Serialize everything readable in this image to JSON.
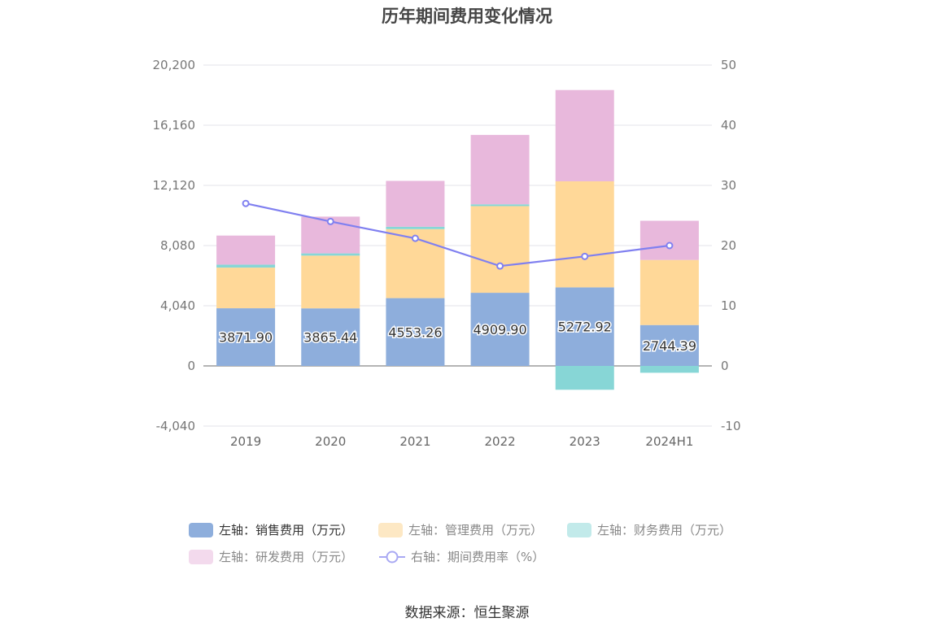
{
  "title": "历年期间费用变化情况",
  "source": "数据来源：恒生聚源",
  "chart_data": {
    "type": "bar",
    "stacked": true,
    "categories": [
      "2019",
      "2020",
      "2021",
      "2022",
      "2023",
      "2024H1"
    ],
    "left_axis": {
      "ticks": [
        "20,200",
        "16,160",
        "12,120",
        "8,080",
        "4,040",
        "0",
        "-4,040"
      ],
      "ylim": [
        -4040,
        20200
      ]
    },
    "right_axis": {
      "ticks": [
        "50",
        "40",
        "30",
        "20",
        "10",
        "0",
        "-10"
      ],
      "ylim": [
        -10,
        50
      ]
    },
    "series": [
      {
        "name": "左轴：销售费用（万元）",
        "axis": "left",
        "color": "#8eaedc",
        "values": [
          3871.9,
          3865.44,
          4553.26,
          4909.9,
          5272.92,
          2744.39
        ],
        "labels": [
          "3871.90",
          "3865.44",
          "4553.26",
          "4909.90",
          "5272.92",
          "2744.39"
        ]
      },
      {
        "name": "左轴：管理费用（万元）",
        "axis": "left",
        "color": "#ffd898",
        "values": [
          2730,
          3540,
          4630,
          5820,
          7120,
          4370
        ]
      },
      {
        "name": "左轴：财务费用（万元）",
        "axis": "left",
        "color": "#87d6d6",
        "values": [
          200,
          150,
          160,
          120,
          -1600,
          -460
        ]
      },
      {
        "name": "左轴：研发费用（万元）",
        "axis": "left",
        "color": "#e8b8dc",
        "values": [
          1950,
          2470,
          3080,
          4660,
          6130,
          2630
        ]
      },
      {
        "name": "右轴：期间费用率（%）",
        "axis": "right",
        "type": "line",
        "color": "#8080f0",
        "values": [
          27.0,
          24.0,
          21.2,
          16.6,
          18.2,
          20.0
        ]
      }
    ]
  },
  "legend": [
    {
      "label": "左轴：销售费用（万元）",
      "color": "#8eaedc",
      "style": "box"
    },
    {
      "label": "左轴：管理费用（万元）",
      "color": "#fde8c4",
      "style": "box"
    },
    {
      "label": "左轴：财务费用（万元）",
      "color": "#c2eaea",
      "style": "box"
    },
    {
      "label": "左轴：研发费用（万元）",
      "color": "#f3daed",
      "style": "box"
    },
    {
      "label": "右轴：期间费用率（%）",
      "color": "#a9a9f3",
      "style": "line"
    }
  ]
}
